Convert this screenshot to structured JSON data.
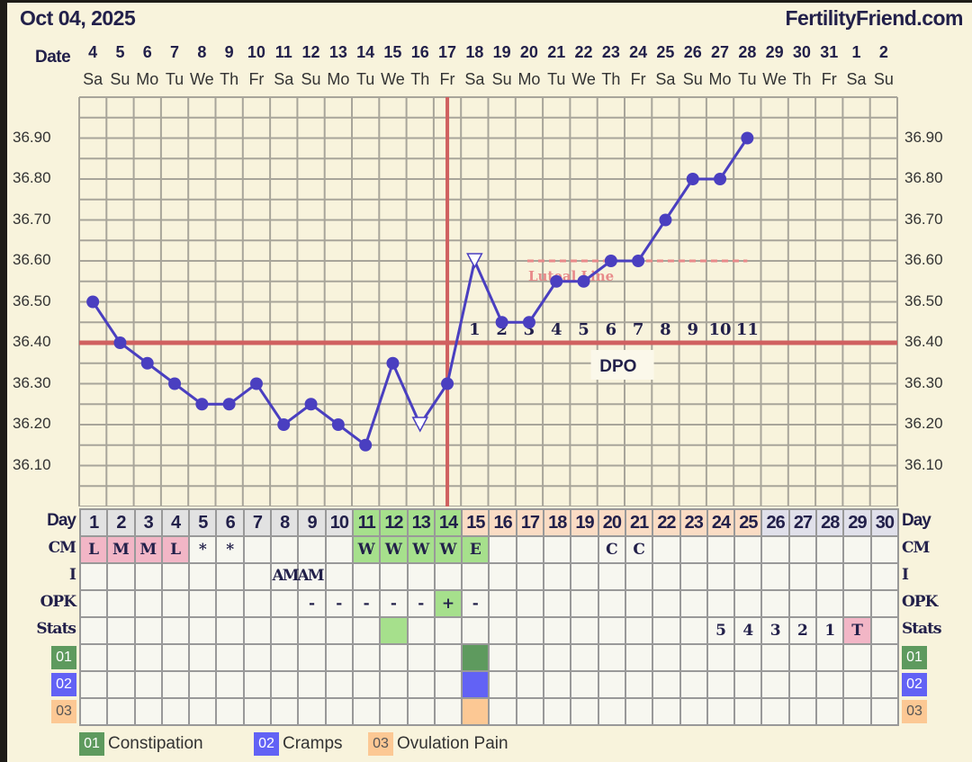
{
  "header": {
    "date": "Oct 04, 2025",
    "brand": "FertilityFriend.com",
    "date_label": "Date"
  },
  "dates": [
    "4",
    "5",
    "6",
    "7",
    "8",
    "9",
    "10",
    "11",
    "12",
    "13",
    "14",
    "15",
    "16",
    "17",
    "18",
    "19",
    "20",
    "21",
    "22",
    "23",
    "24",
    "25",
    "26",
    "27",
    "28",
    "29",
    "30",
    "31",
    "1",
    "2"
  ],
  "weekdays": [
    "Sa",
    "Su",
    "Mo",
    "Tu",
    "We",
    "Th",
    "Fr",
    "Sa",
    "Su",
    "Mo",
    "Tu",
    "We",
    "Th",
    "Fr",
    "Sa",
    "Su",
    "Mo",
    "Tu",
    "We",
    "Th",
    "Fr",
    "Sa",
    "Su",
    "Mo",
    "Tu",
    "We",
    "Th",
    "Fr",
    "Sa",
    "Su"
  ],
  "row_labels": {
    "day": "Day",
    "cm": "CM",
    "i": "I",
    "opk": "OPK",
    "stats": "Stats"
  },
  "cycle_days": [
    "1",
    "2",
    "3",
    "4",
    "5",
    "6",
    "7",
    "8",
    "9",
    "10",
    "11",
    "12",
    "13",
    "14",
    "15",
    "16",
    "17",
    "18",
    "19",
    "20",
    "21",
    "22",
    "23",
    "24",
    "25",
    "26",
    "27",
    "28",
    "29",
    "30"
  ],
  "cm": [
    "L",
    "M",
    "M",
    "L",
    "*",
    "*",
    "",
    "",
    "",
    "",
    "W",
    "W",
    "W",
    "W",
    "E",
    "",
    "",
    "",
    "",
    "C",
    "C",
    "",
    "",
    "",
    "",
    "",
    "",
    "",
    "",
    ""
  ],
  "intercourse": {
    "text": "AMAM",
    "days": [
      8,
      9
    ]
  },
  "opk": [
    "",
    "",
    "",
    "",
    "",
    "",
    "",
    "",
    "-",
    "-",
    "-",
    "-",
    "-",
    "+",
    "-",
    "",
    "",
    "",
    "",
    "",
    "",
    "",
    "",
    "",
    "",
    "",
    "",
    "",
    "",
    ""
  ],
  "stats": [
    "",
    "",
    "",
    "",
    "",
    "",
    "",
    "",
    "",
    "",
    "",
    "",
    "",
    "",
    "",
    "",
    "",
    "",
    "",
    "",
    "",
    "",
    "",
    "5",
    "4",
    "3",
    "2",
    "1",
    "T",
    ""
  ],
  "symptoms": [
    {
      "code": "01",
      "name": "Constipation",
      "color": "#5e9a5e",
      "days": [
        15
      ]
    },
    {
      "code": "02",
      "name": "Cramps",
      "color": "#6262f5",
      "days": [
        15
      ]
    },
    {
      "code": "03",
      "name": "Ovulation Pain",
      "color": "#fcc894",
      "days": [
        15
      ]
    }
  ],
  "colors": {
    "temp_line": "#4a3fc0",
    "coverline": "#d06060",
    "luteal": "#e88a8a",
    "follicular_day": "#e2e2e2",
    "fertile_day": "#a6e08c",
    "luteal_day": "#fadcc4",
    "post_day": "#e0e0ea",
    "menses": "#f2b6c6",
    "background": "#f8f3dc"
  },
  "chart_data": {
    "type": "line",
    "ylim": [
      36.0,
      37.0
    ],
    "yticks": [
      "36.10",
      "36.20",
      "36.30",
      "36.40",
      "36.50",
      "36.60",
      "36.70",
      "36.80",
      "36.90"
    ],
    "x": [
      1,
      2,
      3,
      4,
      5,
      6,
      7,
      8,
      9,
      10,
      11,
      12,
      13,
      14,
      15,
      16,
      17,
      18,
      19,
      20,
      21,
      22,
      23,
      24,
      25
    ],
    "temps": [
      36.5,
      36.4,
      36.35,
      36.3,
      36.25,
      36.25,
      36.3,
      36.2,
      36.25,
      36.2,
      36.15,
      36.35,
      36.2,
      36.3,
      36.6,
      36.45,
      36.45,
      36.55,
      36.55,
      36.6,
      36.6,
      36.7,
      36.8,
      36.8,
      36.9
    ],
    "discarded_days": [
      13,
      15
    ],
    "coverline": 36.4,
    "ovulation_day": 14,
    "luteal_line": {
      "label": "Luteal Line",
      "value": 36.6,
      "from_day": 17,
      "to_day": 25
    },
    "dpo": {
      "label": "DPO",
      "values": [
        "1",
        "2",
        "3",
        "4",
        "5",
        "6",
        "7",
        "8",
        "9",
        "10",
        "11"
      ],
      "start_day": 15
    },
    "grid": true
  }
}
